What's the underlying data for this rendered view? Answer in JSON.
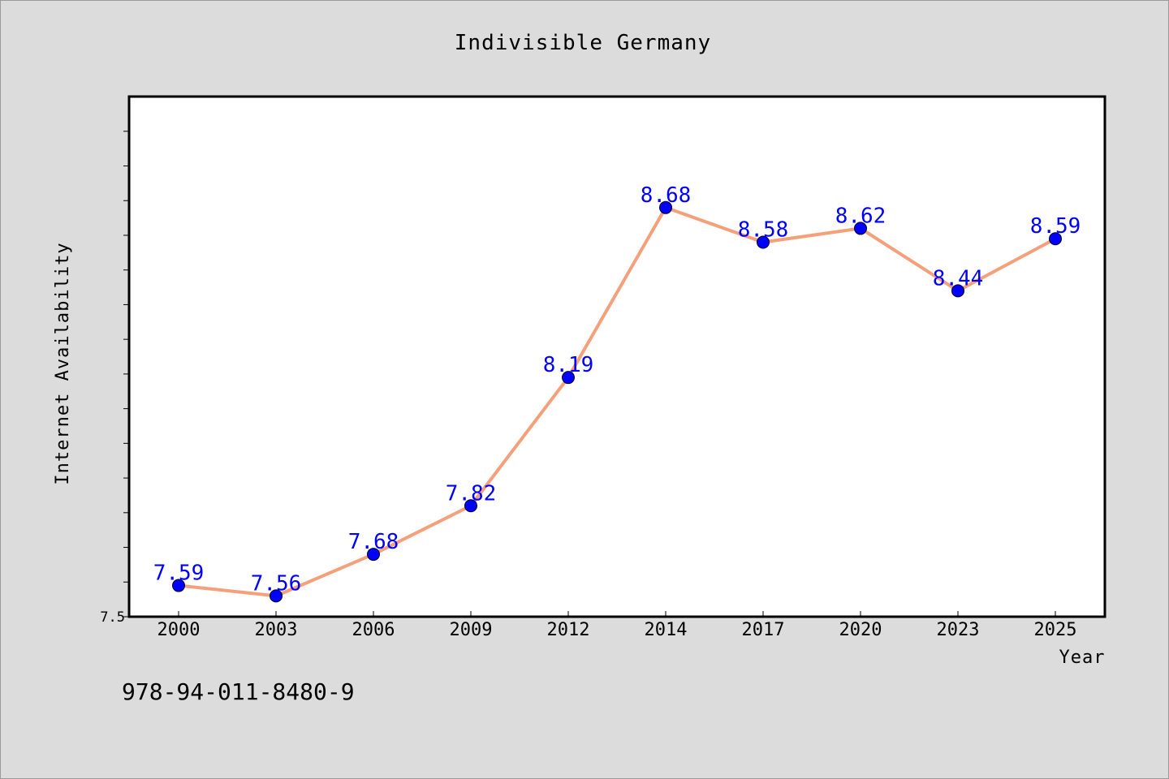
{
  "chart_data": {
    "type": "line",
    "title": "Indivisible Germany",
    "xlabel": "Year",
    "ylabel": "Internet Availability",
    "categories": [
      "2000",
      "2003",
      "2006",
      "2009",
      "2012",
      "2014",
      "2017",
      "2020",
      "2023",
      "2025"
    ],
    "series": [
      {
        "values": [
          7.59,
          7.56,
          7.68,
          7.82,
          8.19,
          8.68,
          8.58,
          8.62,
          8.44,
          8.59
        ],
        "labels": [
          "7.59",
          "7.56",
          "7.68",
          "7.82",
          "8.19",
          "8.68",
          "8.58",
          "8.62",
          "8.44",
          "8.59"
        ],
        "line_color": "#f4a07a",
        "marker_color": "#0000ff"
      }
    ],
    "ylim": [
      7.5,
      9.0
    ],
    "ytick_labels": [
      {
        "value": 7.5,
        "label": "7.5"
      }
    ],
    "grid": false,
    "legend": "none"
  },
  "footer": {
    "isbn": "978-94-011-8480-9"
  },
  "colors": {
    "background": "#dcdcdc",
    "plot_area": "#ffffff",
    "line": "#f4a07a",
    "marker": "#0000ff",
    "data_label": "#0000ff"
  }
}
